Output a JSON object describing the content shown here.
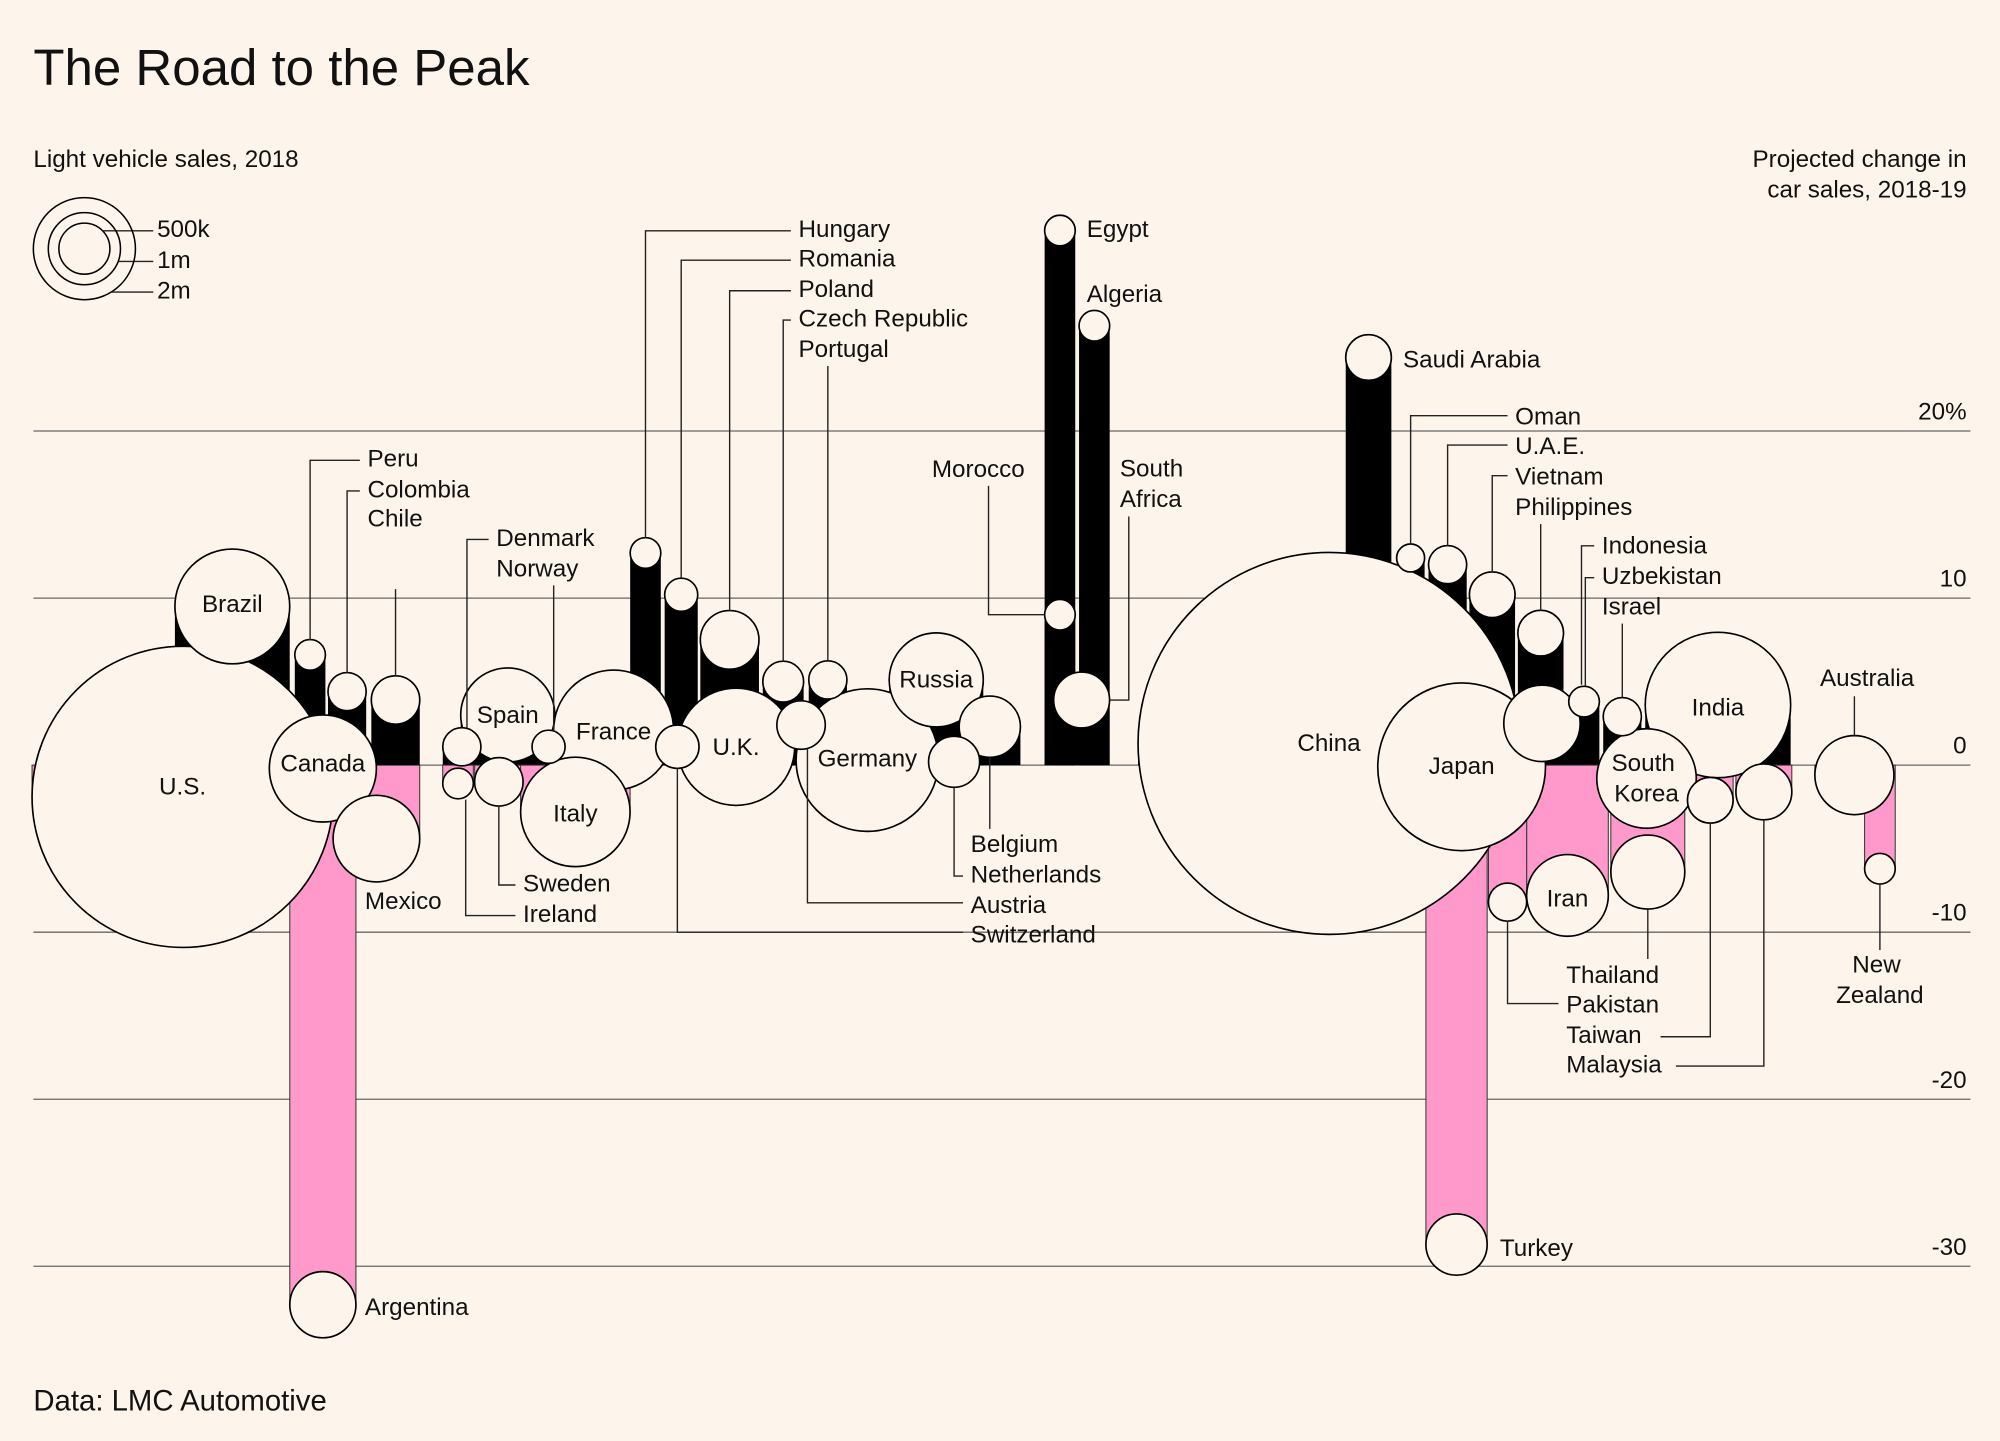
{
  "chart_data": {
    "type": "bubble-lollipop",
    "title": "The Road to the Peak",
    "subtitle": "Light vehicle sales, 2018",
    "y_label": [
      "Projected change in",
      "car sales, 2018-19"
    ],
    "source": "Data: LMC Automotive",
    "categories": [
      "U.S.",
      "Brazil",
      "Canada",
      "Mexico",
      "Argentina",
      "Peru",
      "Colombia",
      "Chile",
      "Denmark",
      "Norway",
      "Spain",
      "Sweden",
      "Ireland",
      "Italy",
      "France",
      "Hungary",
      "Romania",
      "Poland",
      "U.K.",
      "Switzerland",
      "Czech Republic",
      "Portugal",
      "Austria",
      "Germany",
      "Russia",
      "Belgium",
      "Netherlands",
      "Egypt",
      "Morocco",
      "Algeria",
      "South Africa",
      "Saudi Arabia",
      "China",
      "Japan",
      "Oman",
      "U.A.E.",
      "Vietnam",
      "Philippines",
      "Indonesia",
      "Uzbekistan",
      "Israel",
      "India",
      "South Korea",
      "Turkey",
      "Iran",
      "Pakistan",
      "Thailand",
      "Taiwan",
      "Malaysia",
      "Australia",
      "New Zealand"
    ],
    "values": [
      -1.9,
      9.5,
      -0.2,
      -4.4,
      -32.3,
      6.6,
      4.4,
      3.9,
      1.1,
      1.1,
      3.0,
      -1.0,
      -1.1,
      -2.8,
      2.1,
      12.7,
      10.2,
      7.5,
      1.1,
      1.1,
      5.0,
      5.1,
      2.4,
      0.3,
      5.1,
      2.3,
      0.2,
      32.0,
      9.0,
      26.3,
      3.9,
      24.4,
      1.3,
      -0.1,
      12.4,
      12.0,
      10.2,
      7.9,
      2.5,
      3.8,
      2.9,
      3.6,
      -0.8,
      -28.7,
      -7.8,
      -8.2,
      -6.4,
      -2.1,
      -1.6,
      -0.6,
      -6.2
    ],
    "sizes": [
      17400000,
      2530000,
      2200000,
      1440000,
      840000,
      180000,
      280000,
      450000,
      280000,
      210000,
      1700000,
      450000,
      180000,
      2300000,
      2760000,
      180000,
      210000,
      660000,
      2640000,
      360000,
      320000,
      280000,
      450000,
      3900000,
      1700000,
      720000,
      500000,
      180000,
      180000,
      180000,
      600000,
      400000,
      28000000,
      5400000,
      150000,
      280000,
      400000,
      400000,
      1120000,
      180000,
      280000,
      4060000,
      1900000,
      720000,
      1280000,
      280000,
      1050000,
      400000,
      600000,
      1200000,
      180000
    ],
    "positive_color": "#000000",
    "negative_color": "#ff99cc",
    "ylim": [
      -35,
      35
    ],
    "yticks": [
      {
        "value": 20,
        "label": "20%"
      },
      10,
      0,
      -10,
      -20,
      -30
    ],
    "grid": true,
    "size_legend": [
      {
        "value": 500000,
        "label": "500k"
      },
      {
        "value": 1000000,
        "label": "1m"
      },
      {
        "value": 2000000,
        "label": "2m"
      }
    ]
  }
}
